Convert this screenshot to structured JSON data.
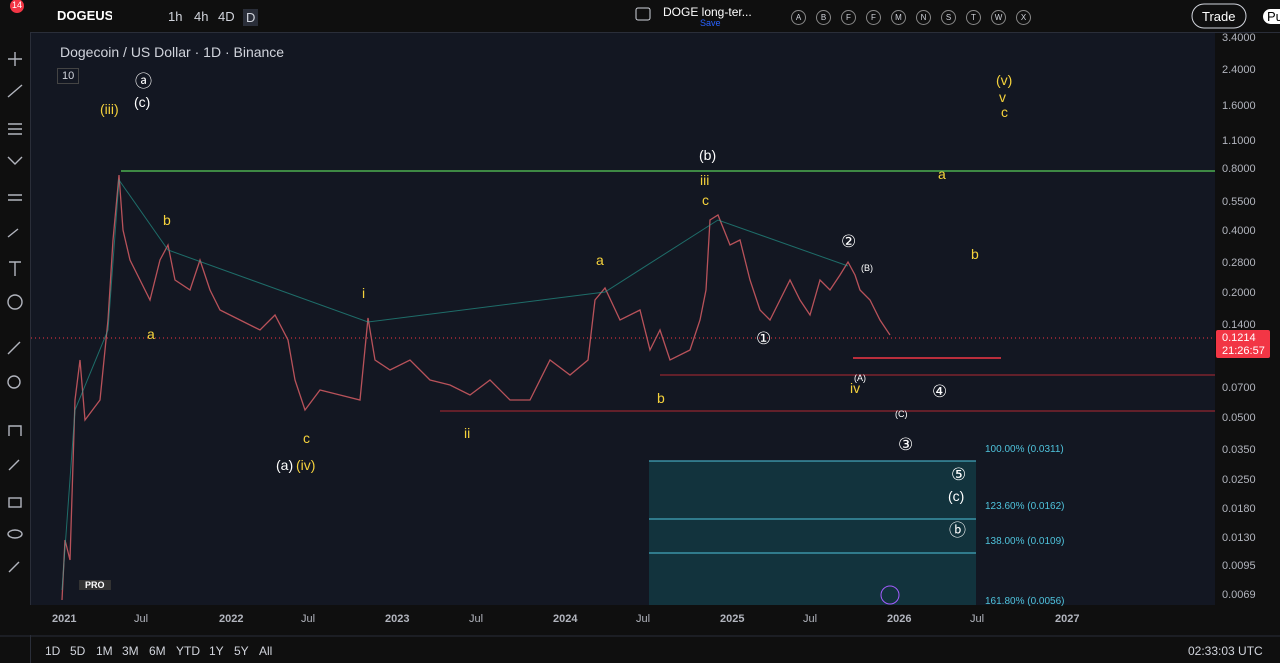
{
  "toolbar": {
    "symbol": "DOGEUSD",
    "badge": "14",
    "intervals": [
      "1h",
      "4h",
      "4D",
      "D"
    ],
    "layout_name": "DOGE long-ter...",
    "save": "Save",
    "letters": [
      "A",
      "B",
      "F",
      "F",
      "M",
      "N",
      "S",
      "T",
      "W",
      "X"
    ],
    "trade": "Trade",
    "publish": "Pu"
  },
  "legend": {
    "title": "Dogecoin / US Dollar · 1D · Binance",
    "collapse": "10"
  },
  "price_axis": {
    "labels": [
      "3.4000",
      "2.4000",
      "1.6000",
      "1.1000",
      "0.8000",
      "0.5500",
      "0.4000",
      "0.2800",
      "0.2000",
      "0.1400",
      "0.0700",
      "0.0500",
      "0.0350",
      "0.0250",
      "0.0180",
      "0.0130",
      "0.0095",
      "0.0069"
    ],
    "last_price": "0.1214",
    "countdown": "21:26:57"
  },
  "time_axis": {
    "labels": [
      "2021",
      "Jul",
      "2022",
      "Jul",
      "2023",
      "Jul",
      "2024",
      "Jul",
      "2025",
      "Jul",
      "2026",
      "Jul",
      "2027"
    ]
  },
  "fib_levels": [
    "100.00% (0.0311)",
    "123.60% (0.0162)",
    "138.00% (0.0109)",
    "161.80% (0.0056)"
  ],
  "annotations": [
    {
      "text": "(iii)",
      "color": "#f5d23c"
    },
    {
      "text": "ⓐ",
      "color": "#ffffff"
    },
    {
      "text": "(c)",
      "color": "#ffffff"
    },
    {
      "text": "b",
      "color": "#f5d23c"
    },
    {
      "text": "a",
      "color": "#f5d23c"
    },
    {
      "text": "c",
      "color": "#f5d23c"
    },
    {
      "text": "(a)",
      "color": "#ffffff"
    },
    {
      "text": "(iv)",
      "color": "#f5d23c"
    },
    {
      "text": "i",
      "color": "#f5d23c"
    },
    {
      "text": "ii",
      "color": "#f5d23c"
    },
    {
      "text": "a",
      "color": "#f5d23c"
    },
    {
      "text": "b",
      "color": "#f5d23c"
    },
    {
      "text": "(b)",
      "color": "#ffffff"
    },
    {
      "text": "iii",
      "color": "#f5d23c"
    },
    {
      "text": "c",
      "color": "#f5d23c"
    },
    {
      "text": "①",
      "color": "#ffffff"
    },
    {
      "text": "②",
      "color": "#ffffff"
    },
    {
      "text": "(B)",
      "color": "#ffffff"
    },
    {
      "text": "(A)",
      "color": "#ffffff"
    },
    {
      "text": "iv",
      "color": "#f5d23c"
    },
    {
      "text": "(C)",
      "color": "#ffffff"
    },
    {
      "text": "④",
      "color": "#ffffff"
    },
    {
      "text": "③",
      "color": "#ffffff"
    },
    {
      "text": "⑤",
      "color": "#ffffff"
    },
    {
      "text": "(c)",
      "color": "#ffffff"
    },
    {
      "text": "ⓑ",
      "color": "#ffffff"
    },
    {
      "text": "(v)",
      "color": "#f5d23c"
    },
    {
      "text": "v",
      "color": "#f5d23c"
    },
    {
      "text": "c",
      "color": "#f5d23c"
    },
    {
      "text": "a",
      "color": "#f5d23c"
    },
    {
      "text": "b",
      "color": "#f5d23c"
    }
  ],
  "range_bar": {
    "ranges": [
      "1D",
      "5D",
      "1M",
      "3M",
      "6M",
      "YTD",
      "1Y",
      "5Y",
      "All"
    ],
    "clock": "02:33:03 UTC"
  },
  "logo": "PRO"
}
